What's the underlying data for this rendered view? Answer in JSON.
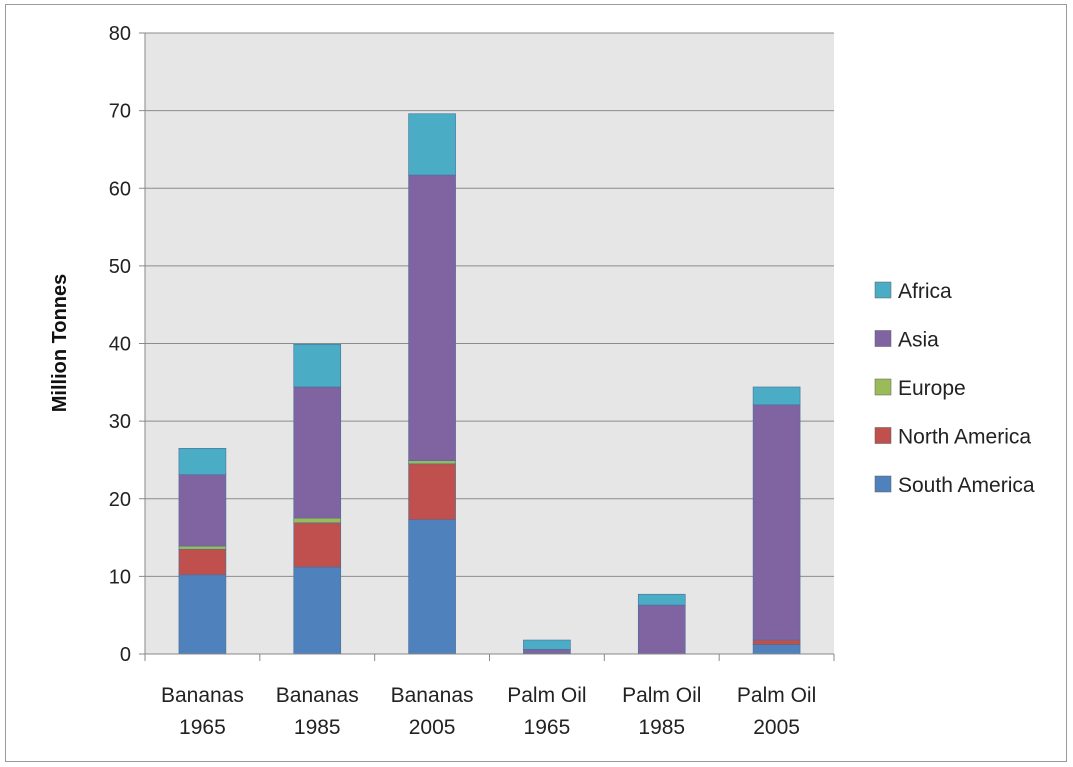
{
  "chart_data": {
    "type": "bar",
    "stacked": true,
    "categories": [
      [
        "Bananas",
        "1965"
      ],
      [
        "Bananas",
        "1985"
      ],
      [
        "Bananas",
        "2005"
      ],
      [
        "Palm Oil",
        "1965"
      ],
      [
        "Palm Oil",
        "1985"
      ],
      [
        "Palm Oil",
        "2005"
      ]
    ],
    "series": [
      {
        "name": "South America",
        "color": "#4f81bd",
        "values": [
          10.2,
          11.2,
          17.3,
          0.0,
          0.0,
          1.2
        ]
      },
      {
        "name": "North America",
        "color": "#c0504d",
        "values": [
          3.3,
          5.7,
          7.2,
          0.1,
          0.0,
          0.6
        ]
      },
      {
        "name": "Europe",
        "color": "#9bbb59",
        "values": [
          0.4,
          0.6,
          0.4,
          0.0,
          0.0,
          0.0
        ]
      },
      {
        "name": "Asia",
        "color": "#8064a2",
        "values": [
          9.2,
          16.9,
          36.8,
          0.5,
          6.3,
          30.3
        ]
      },
      {
        "name": "Africa",
        "color": "#4bacc6",
        "values": [
          3.4,
          5.5,
          7.9,
          1.2,
          1.4,
          2.3
        ]
      }
    ],
    "legend_order": [
      "Africa",
      "Asia",
      "Europe",
      "North America",
      "South America"
    ],
    "ylabel": "Million Tonnes",
    "xlabel": "",
    "ylim": [
      0,
      80
    ],
    "yticks": [
      0,
      10,
      20,
      30,
      40,
      50,
      60,
      70,
      80
    ],
    "grid": true,
    "legend_position": "right"
  }
}
